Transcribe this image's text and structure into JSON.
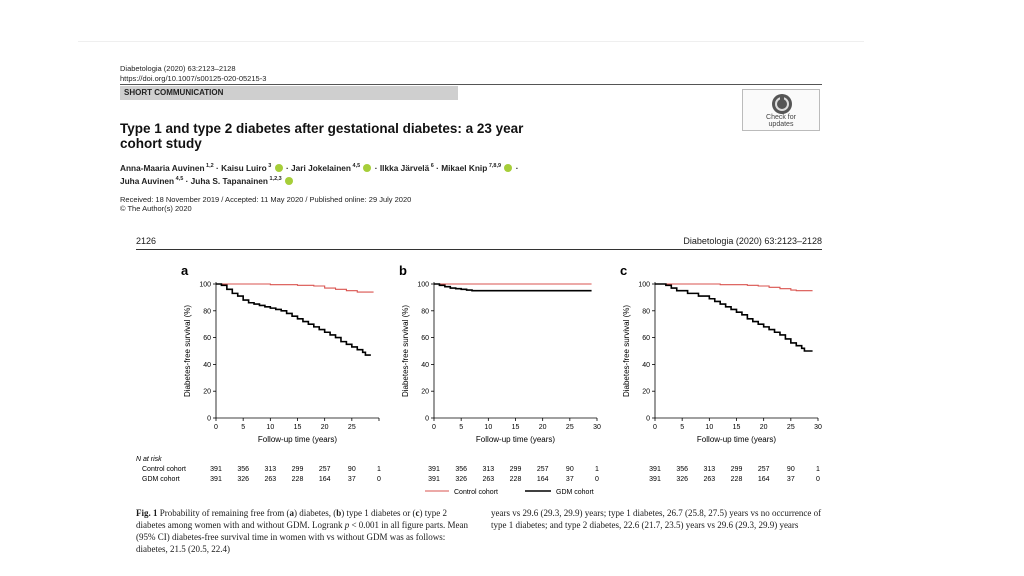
{
  "header": {
    "journal_line": "Diabetologia (2020) 63:2123–2128",
    "doi": "https://doi.org/10.1007/s00125-020-05215-3",
    "section": "SHORT COMMUNICATION",
    "check_label_1": "Check for",
    "check_label_2": "updates"
  },
  "article": {
    "title_line1": "Type 1 and type 2 diabetes after gestational diabetes: a 23 year",
    "title_line2": "cohort study",
    "authors": [
      {
        "name": "Anna-Maaria Auvinen",
        "sup": "1,2",
        "orcid": false
      },
      {
        "name": "Kaisu Luiro",
        "sup": "3",
        "orcid": true
      },
      {
        "name": "Jari Jokelainen",
        "sup": "4,5",
        "orcid": true
      },
      {
        "name": "Ilkka Järvelä",
        "sup": "6",
        "orcid": false
      },
      {
        "name": "Mikael Knip",
        "sup": "7,8,9",
        "orcid": true
      },
      {
        "name": "Juha Auvinen",
        "sup": "4,5",
        "orcid": false
      },
      {
        "name": "Juha S. Tapanainen",
        "sup": "1,2,3",
        "orcid": true
      }
    ],
    "dates": "Received: 18 November 2019 / Accepted: 11 May 2020 / Published online: 29 July 2020",
    "copyright": "© The Author(s) 2020"
  },
  "page": {
    "number": "2126",
    "running_head": "Diabetologia (2020) 63:2123–2128"
  },
  "chart_data": {
    "type": "line",
    "subtype": "kaplan-meier",
    "xlabel": "Follow-up time (years)",
    "ylabel": "Diabetes-free survival (%)",
    "xticks": [
      0,
      5,
      10,
      15,
      20,
      25,
      30
    ],
    "yticks": [
      0,
      20,
      40,
      60,
      80,
      100
    ],
    "xlim": [
      0,
      30
    ],
    "ylim": [
      0,
      100
    ],
    "colors": {
      "control": "#d9534f",
      "gdm": "#000000"
    },
    "legend": [
      "Control cohort",
      "GDM cohort"
    ],
    "panels": [
      {
        "label": "a",
        "xtick_labels": [
          "0",
          "5",
          "10",
          "15",
          "20",
          "25",
          ""
        ],
        "series": [
          {
            "name": "Control cohort",
            "color": "#d9534f",
            "points": [
              [
                0,
                100
              ],
              [
                10,
                99.5
              ],
              [
                15,
                99
              ],
              [
                18,
                98.5
              ],
              [
                20,
                97
              ],
              [
                22,
                96
              ],
              [
                24,
                95
              ],
              [
                26,
                94
              ],
              [
                29,
                94
              ]
            ]
          },
          {
            "name": "GDM cohort",
            "color": "#000000",
            "points": [
              [
                0,
                100
              ],
              [
                1,
                99
              ],
              [
                2,
                96
              ],
              [
                3,
                93
              ],
              [
                4,
                91
              ],
              [
                5,
                88
              ],
              [
                6,
                86
              ],
              [
                7,
                85
              ],
              [
                8,
                84
              ],
              [
                9,
                83
              ],
              [
                10,
                82
              ],
              [
                11,
                81
              ],
              [
                12,
                80
              ],
              [
                13,
                78
              ],
              [
                14,
                76
              ],
              [
                15,
                74
              ],
              [
                16,
                72
              ],
              [
                17,
                70
              ],
              [
                18,
                68
              ],
              [
                19,
                66
              ],
              [
                20,
                64
              ],
              [
                21,
                62
              ],
              [
                22,
                60
              ],
              [
                23,
                57
              ],
              [
                24,
                55
              ],
              [
                25,
                53
              ],
              [
                26,
                51
              ],
              [
                27,
                49
              ],
              [
                27.5,
                47
              ],
              [
                28.5,
                47
              ]
            ]
          }
        ]
      },
      {
        "label": "b",
        "xtick_labels": [
          "0",
          "5",
          "10",
          "15",
          "20",
          "25",
          "30"
        ],
        "series": [
          {
            "name": "Control cohort",
            "color": "#d9534f",
            "points": [
              [
                0,
                100
              ],
              [
                29,
                100
              ]
            ]
          },
          {
            "name": "GDM cohort",
            "color": "#000000",
            "points": [
              [
                0,
                100
              ],
              [
                1,
                99
              ],
              [
                2,
                98
              ],
              [
                3,
                97
              ],
              [
                4,
                96.5
              ],
              [
                5,
                96
              ],
              [
                6,
                95.5
              ],
              [
                7,
                95
              ],
              [
                8,
                95
              ],
              [
                29,
                95
              ]
            ]
          }
        ]
      },
      {
        "label": "c",
        "xtick_labels": [
          "0",
          "5",
          "10",
          "15",
          "20",
          "25",
          "30"
        ],
        "series": [
          {
            "name": "Control cohort",
            "color": "#d9534f",
            "points": [
              [
                0,
                100
              ],
              [
                12,
                99.5
              ],
              [
                17,
                99
              ],
              [
                19,
                98.5
              ],
              [
                21,
                97.5
              ],
              [
                23,
                96.5
              ],
              [
                25,
                95.5
              ],
              [
                26,
                95
              ],
              [
                29,
                95
              ]
            ]
          },
          {
            "name": "GDM cohort",
            "color": "#000000",
            "points": [
              [
                0,
                100
              ],
              [
                2,
                99
              ],
              [
                3,
                97
              ],
              [
                4,
                95
              ],
              [
                6,
                93
              ],
              [
                8,
                91
              ],
              [
                10,
                89
              ],
              [
                11,
                87
              ],
              [
                12,
                85
              ],
              [
                13,
                83
              ],
              [
                14,
                81
              ],
              [
                15,
                79
              ],
              [
                16,
                77
              ],
              [
                17,
                74
              ],
              [
                18,
                72
              ],
              [
                19,
                70
              ],
              [
                20,
                68
              ],
              [
                21,
                66
              ],
              [
                22,
                64
              ],
              [
                23,
                62
              ],
              [
                24,
                59
              ],
              [
                25,
                56
              ],
              [
                26,
                54
              ],
              [
                27,
                52
              ],
              [
                27.5,
                50
              ],
              [
                29,
                50
              ]
            ]
          }
        ]
      }
    ]
  },
  "risk_table": {
    "title": "N at risk",
    "rows": [
      {
        "label": "Control cohort",
        "a": [
          "391",
          "356",
          "313",
          "299",
          "257",
          "90",
          "1"
        ],
        "b": [
          "391",
          "356",
          "313",
          "299",
          "257",
          "90",
          "1"
        ],
        "c": [
          "391",
          "356",
          "313",
          "299",
          "257",
          "90",
          "1"
        ]
      },
      {
        "label": "GDM cohort",
        "a": [
          "391",
          "326",
          "263",
          "228",
          "164",
          "37",
          "0"
        ],
        "b": [
          "391",
          "326",
          "263",
          "228",
          "164",
          "37",
          "0"
        ],
        "c": [
          "391",
          "326",
          "263",
          "228",
          "164",
          "37",
          "0"
        ]
      }
    ]
  },
  "caption": {
    "fig_label": "Fig. 1",
    "left_part1": "Probability of remaining free from (",
    "a": "a",
    "left_part2": ") diabetes, (",
    "b": "b",
    "left_part3": ") type 1 diabetes or (",
    "c": "c",
    "left_part4": ") type 2 diabetes among women with and without GDM. Logrank ",
    "p": "p",
    "left_part5": " < 0.001 in all figure parts. Mean (95% CI) diabetes-free survival time in women with vs without GDM was as follows: diabetes, 21.5 (20.5, 22.4)",
    "right": "years vs 29.6 (29.3, 29.9) years; type 1 diabetes, 26.7 (25.8, 27.5) years vs no occurrence of type 1 diabetes; and type 2 diabetes, 22.6 (21.7, 23.5) years vs 29.6 (29.3, 29.9) years"
  }
}
